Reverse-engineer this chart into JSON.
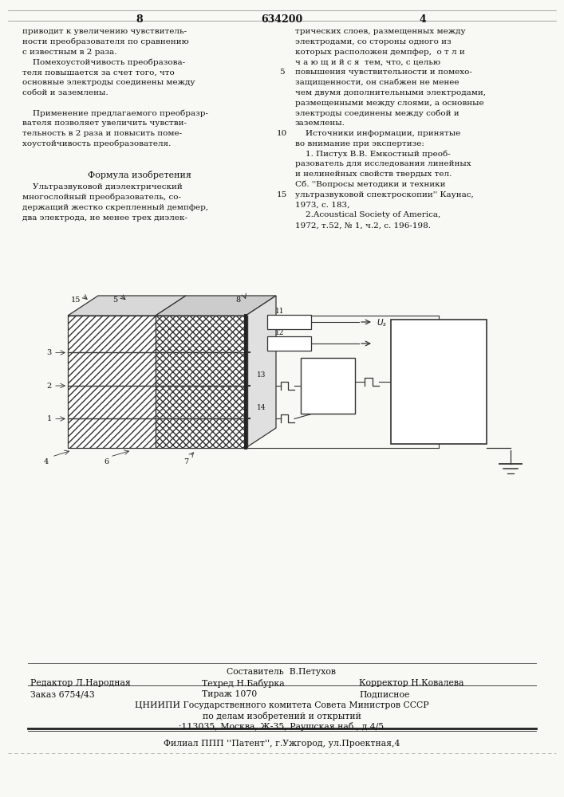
{
  "page_color": "#f8f8f4",
  "text_color": "#1a1a1a",
  "patent_number": "634200",
  "page_left": "8",
  "page_right": "4",
  "col_left_lines": [
    "приводит к увеличению чувствитель-",
    "ности преобразователя по сравнению",
    "с известным в 2 раза.",
    "    Помехоустойчивость преобразова-",
    "теля повышается за счет того, что",
    "основные электроды соединены между",
    "собой и заземлены.",
    "",
    "    Применение предлагаемого преобразр-",
    "вателя позволяет увеличить чувстви-",
    "тельность в 2 раза и повысить поме-",
    "хоустойчивость преобразователя."
  ],
  "col_right_lines_top": [
    "трических слоев, размещенных между",
    "электродами, со стороны одного из",
    "которых расположен демпфер,  о т л и",
    "ч а ю щ и й с я  тем, что, с целью",
    "повышения чувствительности и помехо-",
    "защищенности, он снабжен не менее",
    "чем двумя дополнительными электродами,",
    "размещенными между слоями, а основные",
    "электроды соединены между собой и",
    "заземлены.",
    "    Источники информации, принятые",
    "во внимание при экспертизе:",
    "    1. Пистух В.В. Емкостный преоб-",
    "разователь для исследования линейных",
    "и нелинейных свойств твердых тел.",
    "Сб. ''Вопросы методики и техники",
    "ультразвуковой спектроскопии'' Каунас,",
    "1973, с. 183,",
    "    2.Acoustical Society of America,",
    "1972, т.52, № 1, ч.2, с. 196-198."
  ],
  "line_numbers": [
    [
      "5",
      4
    ],
    [
      "10",
      10
    ],
    [
      "15",
      16
    ]
  ],
  "formula_header": "Формула изобретения",
  "formula_lines": [
    "    Ультразвуковой диэлектрический",
    "многослойный преобразователь, со-",
    "держащий жестко скрепленный демпфер,",
    "два электрода, не менее трех диэлек-"
  ],
  "footer_compiler": "Составитель  В.Петухов",
  "footer_editor": "Редактор Л.Народная",
  "footer_techred": "Техред Н.Бабурка",
  "footer_corrector": "Корректор Н.Ковалева",
  "footer_order": "Заказ 6754/43",
  "footer_tirazh": "Тираж 1070",
  "footer_podpisnoe": "Подписное",
  "footer_cniip1": "ЦНИИПИ Государственного комитета Совета Министров СССР",
  "footer_cniip2": "по делам изобретений и открытий",
  "footer_cniip3": "·113035, Москва, Ж-35, Раушская наб., д.4/5",
  "footer_filial": "Филиал ППП ''Патент'', г.Ужгород, ул.Проектная,4"
}
